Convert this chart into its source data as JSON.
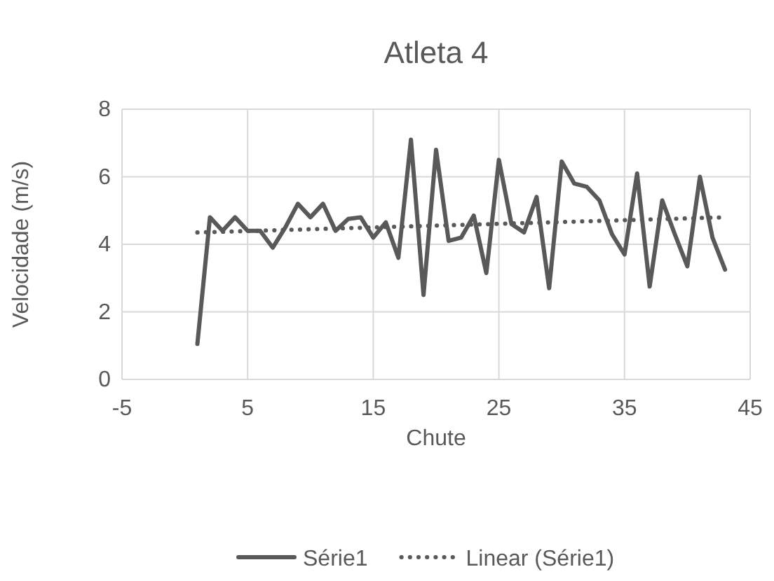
{
  "chart_data": {
    "type": "line",
    "title": "Atleta 4",
    "xlabel": "Chute",
    "ylabel": "Velocidade (m/s)",
    "xlim": [
      -5,
      45
    ],
    "xticks": [
      -5,
      5,
      15,
      25,
      35,
      45
    ],
    "ylim": [
      0,
      8
    ],
    "yticks": [
      0,
      2,
      4,
      6,
      8
    ],
    "grid": true,
    "legend": "bottom",
    "series": [
      {
        "name": "Série1",
        "color": "#595959",
        "line_style": "solid",
        "x": [
          1,
          2,
          3,
          4,
          5,
          6,
          7,
          8,
          9,
          10,
          11,
          12,
          13,
          14,
          15,
          16,
          17,
          18,
          19,
          20,
          21,
          22,
          23,
          24,
          25,
          26,
          27,
          28,
          29,
          30,
          31,
          32,
          33,
          34,
          35,
          36,
          37,
          38,
          39,
          40,
          41,
          42,
          43
        ],
        "values": [
          1.05,
          4.8,
          4.4,
          4.8,
          4.4,
          4.4,
          3.9,
          4.5,
          5.2,
          4.8,
          5.2,
          4.4,
          4.75,
          4.8,
          4.2,
          4.65,
          3.6,
          7.1,
          2.5,
          6.8,
          4.1,
          4.2,
          4.85,
          3.15,
          6.5,
          4.6,
          4.35,
          5.4,
          2.7,
          6.45,
          5.8,
          5.7,
          5.3,
          4.3,
          3.7,
          6.1,
          2.75,
          5.3,
          4.3,
          3.35,
          6.0,
          4.2,
          3.25
        ]
      },
      {
        "name": "Linear (Série1)",
        "color": "#595959",
        "line_style": "dotted",
        "x": [
          1,
          43
        ],
        "values": [
          4.35,
          4.8
        ]
      }
    ]
  }
}
